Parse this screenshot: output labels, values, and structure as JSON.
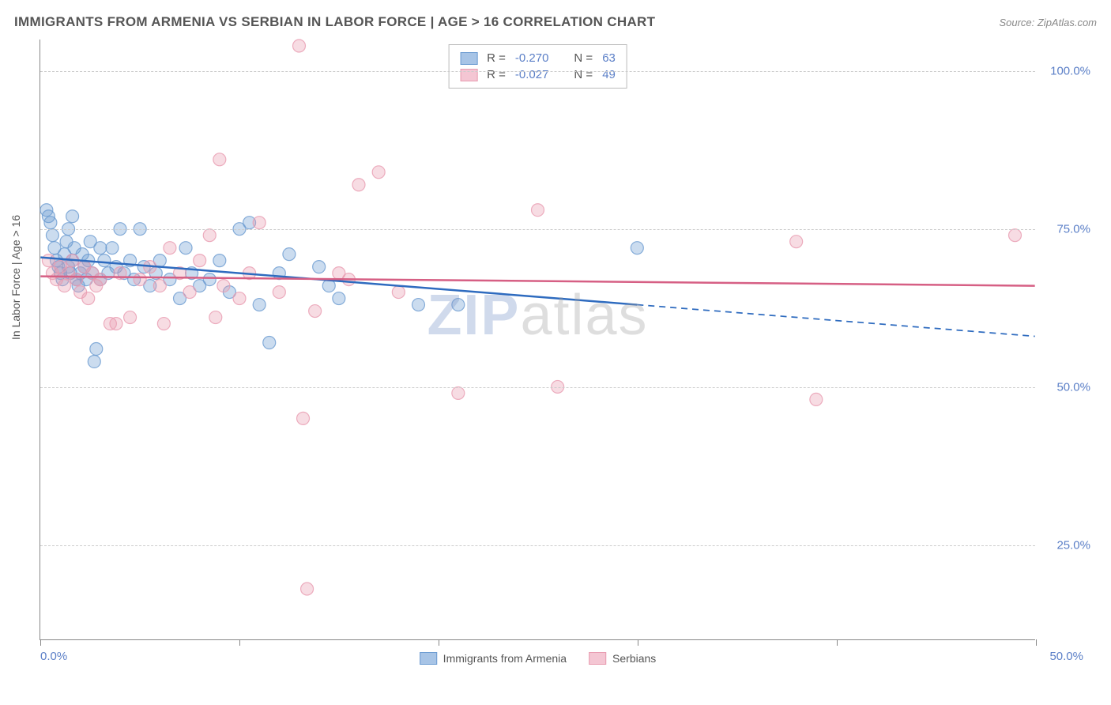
{
  "header": {
    "title": "IMMIGRANTS FROM ARMENIA VS SERBIAN IN LABOR FORCE | AGE > 16 CORRELATION CHART",
    "source": "Source: ZipAtlas.com"
  },
  "watermark": {
    "z": "ZIP",
    "rest": "atlas"
  },
  "chart": {
    "type": "scatter",
    "ylabel": "In Labor Force | Age > 16",
    "xlim": [
      0,
      50
    ],
    "ylim": [
      10,
      105
    ],
    "x_ticks": [
      0,
      10,
      20,
      30,
      40,
      50
    ],
    "x_tick_labels": {
      "0": "0.0%",
      "50": "50.0%"
    },
    "y_gridlines": [
      25,
      50,
      75,
      100
    ],
    "y_tick_labels": {
      "25": "25.0%",
      "50": "50.0%",
      "75": "75.0%",
      "100": "100.0%"
    },
    "background_color": "#ffffff",
    "grid_color": "#cccccc",
    "axis_color": "#888888",
    "text_color": "#555555",
    "tick_label_color": "#5b7fc7",
    "marker_radius": 8,
    "marker_fill_opacity": 0.35,
    "marker_stroke_opacity": 0.8,
    "line_width": 2.5,
    "series": [
      {
        "name": "Immigrants from Armenia",
        "color": "#6b9bd1",
        "line_color": "#2e6bbf",
        "R": "-0.270",
        "N": "63",
        "trend": {
          "x1": 0,
          "y1": 70.5,
          "x2": 30,
          "y2": 63.0,
          "x2_dash": 50,
          "y2_dash": 58.0
        },
        "points": [
          [
            0.3,
            78
          ],
          [
            0.5,
            76
          ],
          [
            0.6,
            74
          ],
          [
            0.7,
            72
          ],
          [
            0.8,
            70
          ],
          [
            0.9,
            69
          ],
          [
            1.0,
            68
          ],
          [
            1.1,
            67
          ],
          [
            1.2,
            71
          ],
          [
            1.3,
            73
          ],
          [
            1.4,
            75
          ],
          [
            1.4,
            69
          ],
          [
            1.5,
            68
          ],
          [
            1.6,
            70
          ],
          [
            1.7,
            72
          ],
          [
            1.8,
            67
          ],
          [
            1.9,
            66
          ],
          [
            2.0,
            68
          ],
          [
            2.1,
            71
          ],
          [
            2.2,
            69
          ],
          [
            2.3,
            67
          ],
          [
            2.4,
            70
          ],
          [
            2.5,
            73
          ],
          [
            2.6,
            68
          ],
          [
            2.8,
            56
          ],
          [
            3.0,
            67
          ],
          [
            3.2,
            70
          ],
          [
            3.4,
            68
          ],
          [
            3.6,
            72
          ],
          [
            3.8,
            69
          ],
          [
            4.0,
            75
          ],
          [
            4.2,
            68
          ],
          [
            4.5,
            70
          ],
          [
            4.7,
            67
          ],
          [
            5.0,
            75
          ],
          [
            5.2,
            69
          ],
          [
            5.5,
            66
          ],
          [
            5.8,
            68
          ],
          [
            6.0,
            70
          ],
          [
            6.5,
            67
          ],
          [
            7.0,
            64
          ],
          [
            7.3,
            72
          ],
          [
            7.6,
            68
          ],
          [
            8.0,
            66
          ],
          [
            8.5,
            67
          ],
          [
            9.0,
            70
          ],
          [
            9.5,
            65
          ],
          [
            10.0,
            75
          ],
          [
            10.5,
            76
          ],
          [
            11.0,
            63
          ],
          [
            11.5,
            57
          ],
          [
            12.0,
            68
          ],
          [
            12.5,
            71
          ],
          [
            14.0,
            69
          ],
          [
            14.5,
            66
          ],
          [
            15.0,
            64
          ],
          [
            19.0,
            63
          ],
          [
            21.0,
            63
          ],
          [
            30.0,
            72
          ],
          [
            0.4,
            77
          ],
          [
            1.6,
            77
          ],
          [
            2.7,
            54
          ],
          [
            3.0,
            72
          ]
        ]
      },
      {
        "name": "Serbians",
        "color": "#e89bb0",
        "line_color": "#d65f84",
        "R": "-0.027",
        "N": "49",
        "trend": {
          "x1": 0,
          "y1": 67.5,
          "x2": 50,
          "y2": 66.0,
          "x2_dash": 50,
          "y2_dash": 66.0
        },
        "points": [
          [
            0.4,
            70
          ],
          [
            0.6,
            68
          ],
          [
            0.8,
            67
          ],
          [
            1.0,
            69
          ],
          [
            1.2,
            66
          ],
          [
            1.4,
            68
          ],
          [
            1.6,
            70
          ],
          [
            1.8,
            67
          ],
          [
            2.0,
            65
          ],
          [
            2.2,
            69
          ],
          [
            2.4,
            64
          ],
          [
            2.6,
            68
          ],
          [
            2.8,
            66
          ],
          [
            3.0,
            67
          ],
          [
            3.5,
            60
          ],
          [
            4.0,
            68
          ],
          [
            4.5,
            61
          ],
          [
            5.0,
            67
          ],
          [
            5.5,
            69
          ],
          [
            6.0,
            66
          ],
          [
            6.5,
            72
          ],
          [
            7.0,
            68
          ],
          [
            7.5,
            65
          ],
          [
            8.0,
            70
          ],
          [
            8.5,
            74
          ],
          [
            9.0,
            86
          ],
          [
            9.2,
            66
          ],
          [
            10.0,
            64
          ],
          [
            10.5,
            68
          ],
          [
            11.0,
            76
          ],
          [
            12.0,
            65
          ],
          [
            13.0,
            104
          ],
          [
            13.2,
            45
          ],
          [
            13.4,
            18
          ],
          [
            15.0,
            68
          ],
          [
            15.5,
            67
          ],
          [
            16.0,
            82
          ],
          [
            17.0,
            84
          ],
          [
            18.0,
            65
          ],
          [
            21.0,
            49
          ],
          [
            25.0,
            78
          ],
          [
            26.0,
            50
          ],
          [
            38.0,
            73
          ],
          [
            39.0,
            48
          ],
          [
            49.0,
            74
          ],
          [
            3.8,
            60
          ],
          [
            6.2,
            60
          ],
          [
            8.8,
            61
          ],
          [
            13.8,
            62
          ]
        ]
      }
    ],
    "legend_bottom": [
      {
        "label": "Immigrants from Armenia",
        "fill": "#a7c4e6",
        "stroke": "#6b9bd1"
      },
      {
        "label": "Serbians",
        "fill": "#f4c6d3",
        "stroke": "#e89bb0"
      }
    ],
    "corr_box": {
      "r_label": "R =",
      "n_label": "N ="
    }
  }
}
